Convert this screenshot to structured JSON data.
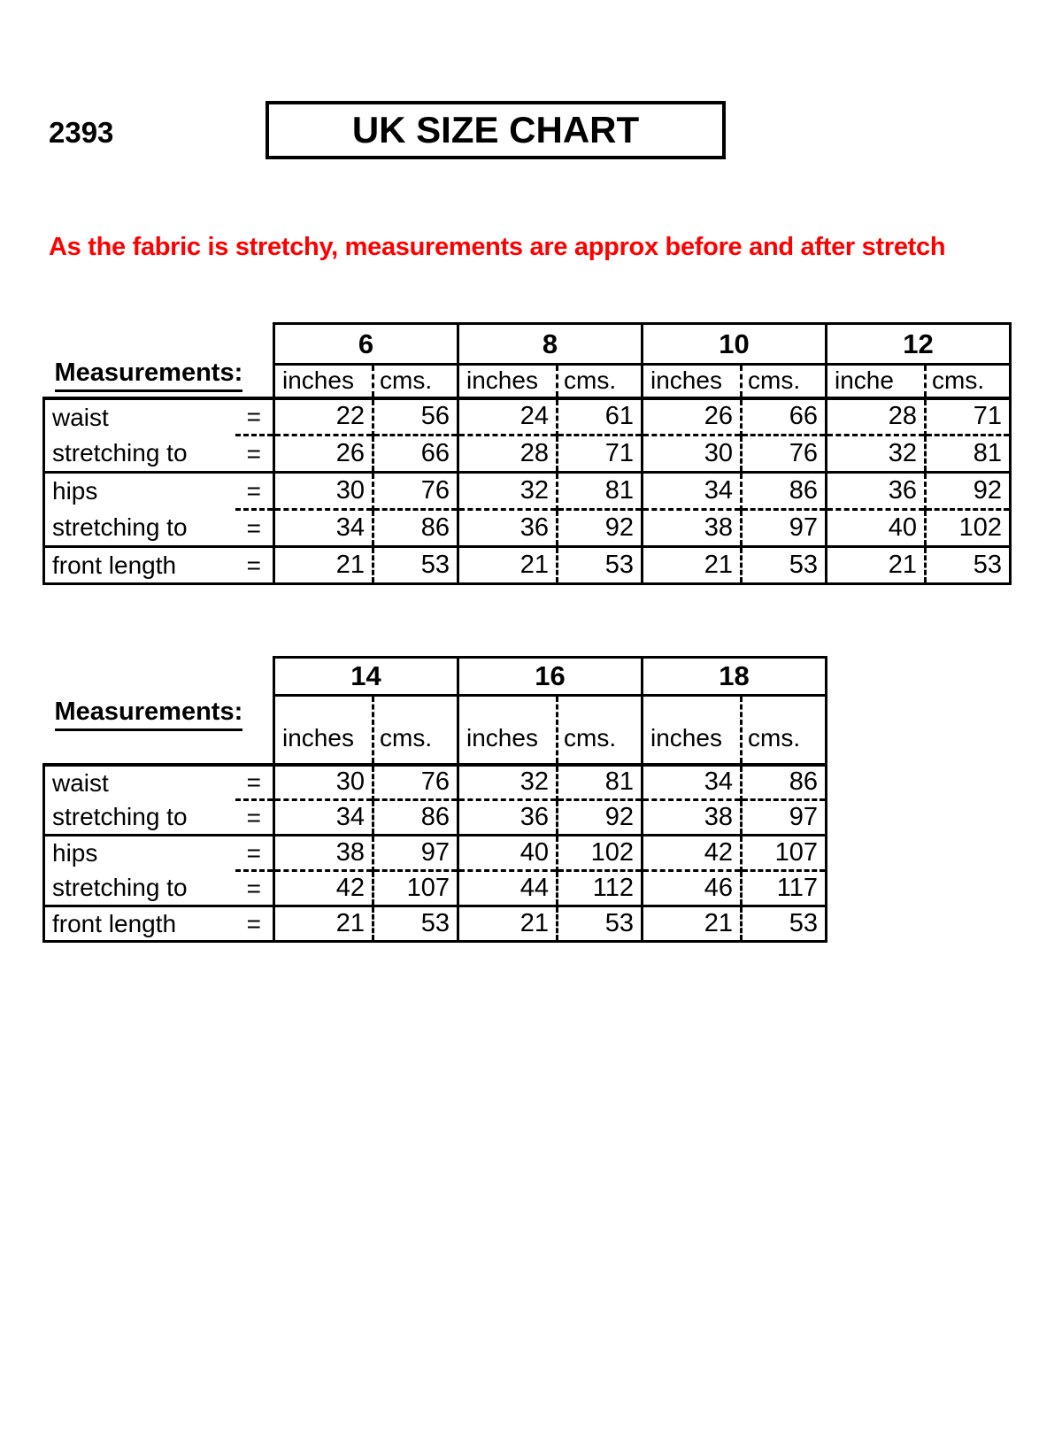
{
  "page": {
    "item_number": "2393",
    "title": "UK SIZE CHART",
    "note": "As the fabric is stretchy, measurements are approx before and after stretch",
    "colors": {
      "note_red": "#ff0000",
      "text": "#000000",
      "background": "#ffffff"
    }
  },
  "labels": {
    "measurements": "Measurements:",
    "equals": "="
  },
  "units": {
    "inches": "inches",
    "inches_short": "inche",
    "cms": "cms."
  },
  "table1": {
    "sizes": [
      "6",
      "8",
      "10",
      "12"
    ],
    "rows": [
      {
        "label": "waist",
        "values": [
          "22",
          "56",
          "24",
          "61",
          "26",
          "66",
          "28",
          "71"
        ]
      },
      {
        "label": "stretching to",
        "values": [
          "26",
          "66",
          "28",
          "71",
          "30",
          "76",
          "32",
          "81"
        ]
      },
      {
        "label": "hips",
        "values": [
          "30",
          "76",
          "32",
          "81",
          "34",
          "86",
          "36",
          "92"
        ]
      },
      {
        "label": "stretching to",
        "values": [
          "34",
          "86",
          "36",
          "92",
          "38",
          "97",
          "40",
          "102"
        ]
      },
      {
        "label": "front length",
        "values": [
          "21",
          "53",
          "21",
          "53",
          "21",
          "53",
          "21",
          "53"
        ]
      }
    ]
  },
  "table2": {
    "sizes": [
      "14",
      "16",
      "18"
    ],
    "rows": [
      {
        "label": "waist",
        "values": [
          "30",
          "76",
          "32",
          "81",
          "34",
          "86"
        ]
      },
      {
        "label": "stretching to",
        "values": [
          "34",
          "86",
          "36",
          "92",
          "38",
          "97"
        ]
      },
      {
        "label": "hips",
        "values": [
          "38",
          "97",
          "40",
          "102",
          "42",
          "107"
        ]
      },
      {
        "label": "stretching to",
        "values": [
          "42",
          "107",
          "44",
          "112",
          "46",
          "117"
        ]
      },
      {
        "label": "front length",
        "values": [
          "21",
          "53",
          "21",
          "53",
          "21",
          "53"
        ]
      }
    ]
  }
}
